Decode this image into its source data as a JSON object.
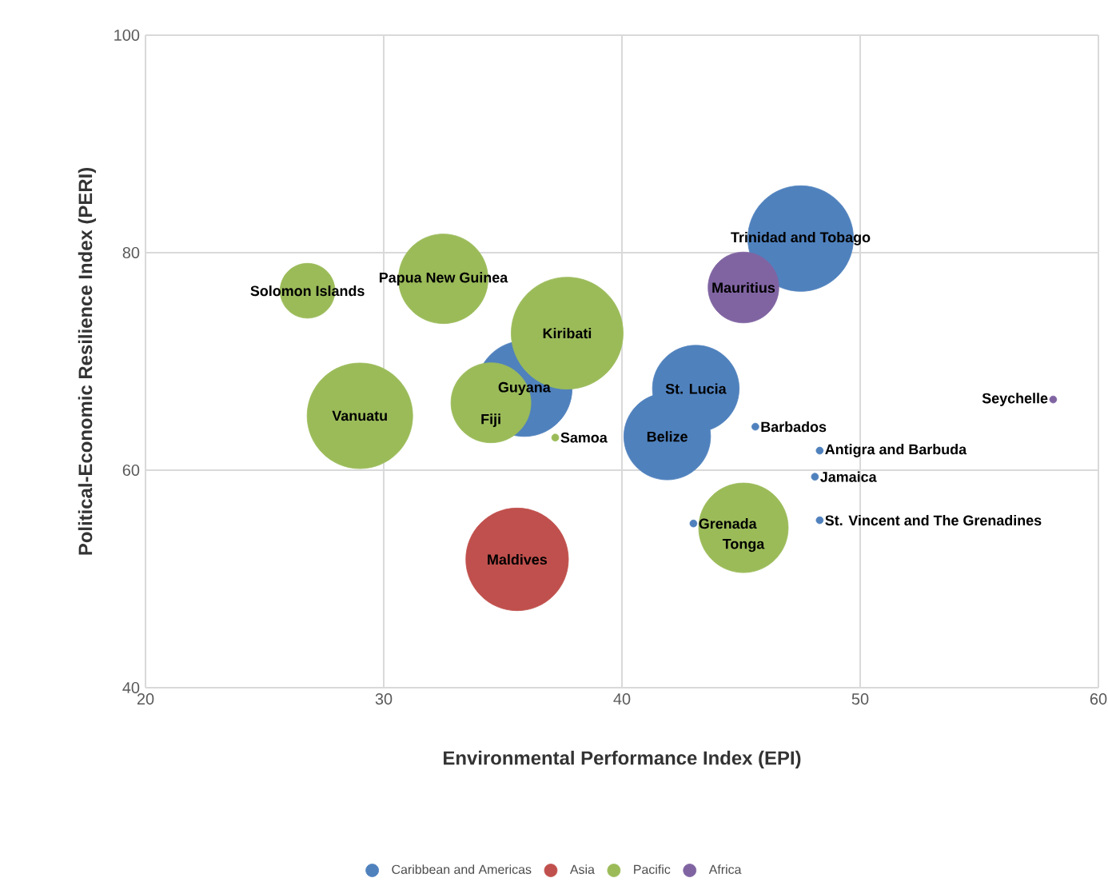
{
  "chart_data": {
    "type": "bubble",
    "xlabel": "Environmental Performance Index (EPI)",
    "ylabel": "Political-Economic Resilience Index (PERI)",
    "xlim": [
      20,
      60
    ],
    "xticks": [
      20,
      30,
      40,
      50,
      60
    ],
    "ylim": [
      40,
      100
    ],
    "yticks": [
      40,
      60,
      80,
      100
    ],
    "grid": true,
    "legend": "bottom",
    "series": [
      {
        "name": "Caribbean and Americas",
        "color": "#4f81bd",
        "x": [
          47.5,
          35.9,
          43.1,
          41.9,
          45.6,
          48.3,
          48.1,
          48.3,
          43.0
        ],
        "values": [
          81.3,
          67.5,
          67.5,
          63.1,
          64.0,
          61.8,
          59.4,
          55.4,
          55.1
        ],
        "sizes": [
          0.89,
          0.73,
          0.6,
          0.6,
          0.004,
          0.004,
          0.004,
          0.004,
          0.004
        ]
      },
      {
        "name": "Asia",
        "color": "#c0504d",
        "x": [
          35.6
        ],
        "values": [
          51.8
        ],
        "sizes": [
          0.84
        ]
      },
      {
        "name": "Pacific",
        "color": "#9bbb59",
        "x": [
          26.8,
          32.5,
          37.7,
          29.0,
          34.5,
          37.2,
          45.1
        ],
        "values": [
          76.5,
          77.6,
          72.6,
          65.0,
          66.2,
          63.0,
          54.7
        ],
        "sizes": [
          0.24,
          0.64,
          1,
          0.89,
          0.51,
          0.004,
          0.64
        ]
      },
      {
        "name": "Africa",
        "color": "#8064a2",
        "x": [
          45.1,
          58.1
        ],
        "values": [
          76.8,
          66.5
        ],
        "sizes": [
          0.4,
          0.004
        ]
      }
    ],
    "annotations": [
      {
        "text": "Trinidad and Tobago",
        "x": 47.5,
        "y": 81.3
      },
      {
        "text": "Guyana",
        "x": 35.9,
        "y": 67.5
      },
      {
        "text": "St. Lucia",
        "x": 43.1,
        "y": 67.5
      },
      {
        "text": "Belize",
        "x": 41.9,
        "y": 63.1
      },
      {
        "text": "Barbados",
        "x": 45.6,
        "y": 64.0
      },
      {
        "text": "Antigra and Barbuda",
        "x": 48.3,
        "y": 61.8
      },
      {
        "text": "Jamaica",
        "x": 48.1,
        "y": 59.4
      },
      {
        "text": "St. Vincent and The Grenadines",
        "x": 48.3,
        "y": 55.4
      },
      {
        "text": "Grenada",
        "x": 43.0,
        "y": 55.1
      },
      {
        "text": "Maldives",
        "x": 35.6,
        "y": 51.8
      },
      {
        "text": "Solomon Islands",
        "x": 26.8,
        "y": 76.5
      },
      {
        "text": "Papua New Guinea",
        "x": 32.5,
        "y": 77.6
      },
      {
        "text": "Kiribati",
        "x": 37.7,
        "y": 72.6
      },
      {
        "text": "Vanuatu",
        "x": 29.0,
        "y": 65.0
      },
      {
        "text": "Fiji",
        "x": 34.5,
        "y": 66.2
      },
      {
        "text": "Samoa",
        "x": 37.2,
        "y": 63.0
      },
      {
        "text": "Tonga",
        "x": 45.1,
        "y": 54.7
      },
      {
        "text": "Mauritius",
        "x": 45.1,
        "y": 76.8
      },
      {
        "text": "Seychelle",
        "x": 58.1,
        "y": 66.5
      }
    ]
  }
}
